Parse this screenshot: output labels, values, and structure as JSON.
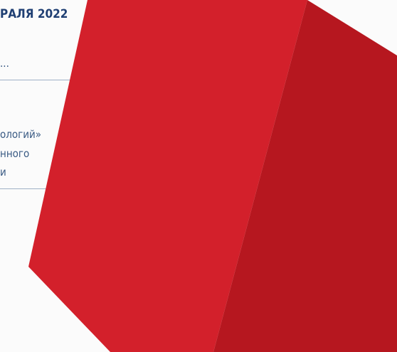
{
  "header": {
    "title": "РАЛЯ 2022"
  },
  "text_lines": [
    "...",
    "ологий»",
    "нного",
    "и"
  ]
}
